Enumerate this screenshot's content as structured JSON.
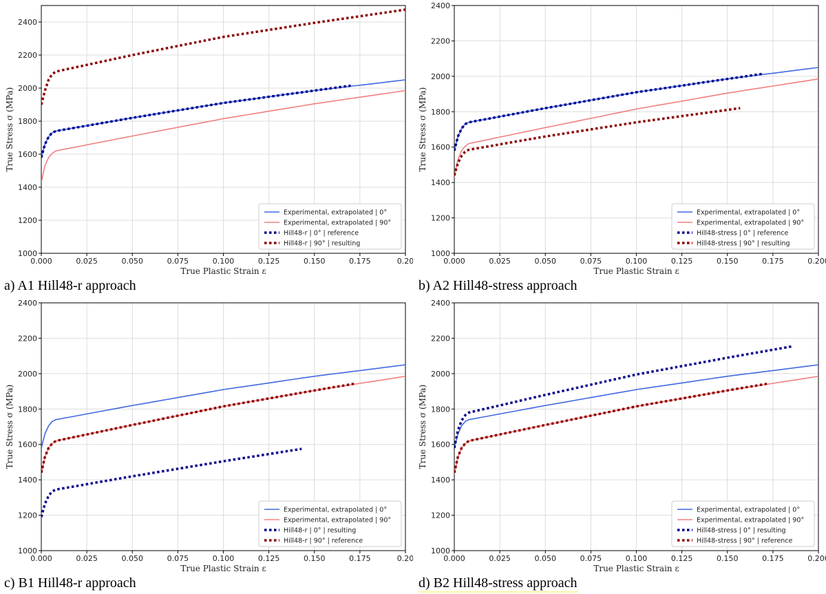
{
  "colors": {
    "exp_0": "#4169e1",
    "exp_90": "#f08080",
    "model_0": "#00008b",
    "model_90": "#8b0000"
  },
  "chart_data": [
    {
      "id": "a",
      "type": "line",
      "caption": "a) A1 Hill48-r approach",
      "xlabel": "True Plastic Strain ε",
      "ylabel": "True Stress σ (MPa)",
      "xlim": [
        0,
        0.2
      ],
      "ylim": [
        1000,
        2500
      ],
      "xticks": [
        "0.000",
        "0.025",
        "0.050",
        "0.075",
        "0.100",
        "0.125",
        "0.150",
        "0.175",
        "0.20"
      ],
      "yticks": [
        "1000",
        "1200",
        "1400",
        "1600",
        "1800",
        "2000",
        "2200",
        "2400"
      ],
      "legend_position": "bottom-right",
      "series": [
        {
          "name": "Experimental, extrapolated | 0°",
          "style": "solid",
          "color": "#4169e1",
          "x": [
            0,
            0.002,
            0.004,
            0.006,
            0.008,
            0.05,
            0.1,
            0.15,
            0.2
          ],
          "values": [
            1580,
            1660,
            1705,
            1730,
            1740,
            1820,
            1910,
            1985,
            2050
          ]
        },
        {
          "name": "Experimental, extrapolated | 90°",
          "style": "solid",
          "color": "#f08080",
          "x": [
            0,
            0.002,
            0.004,
            0.006,
            0.008,
            0.05,
            0.1,
            0.15,
            0.2
          ],
          "values": [
            1430,
            1530,
            1580,
            1605,
            1620,
            1710,
            1815,
            1905,
            1985
          ]
        },
        {
          "name": "Hill48-r | 0° | reference",
          "style": "dotted",
          "color": "#00008b",
          "x": [
            0,
            0.002,
            0.004,
            0.006,
            0.008,
            0.05,
            0.1,
            0.15,
            0.17
          ],
          "values": [
            1580,
            1660,
            1705,
            1730,
            1740,
            1820,
            1910,
            1985,
            2015
          ]
        },
        {
          "name": "Hill48-r | 90° | resulting",
          "style": "dotted",
          "color": "#8b0000",
          "x": [
            0,
            0.002,
            0.004,
            0.006,
            0.008,
            0.05,
            0.1,
            0.15,
            0.2
          ],
          "values": [
            1900,
            1985,
            2050,
            2085,
            2100,
            2200,
            2310,
            2395,
            2475
          ]
        }
      ]
    },
    {
      "id": "b",
      "type": "line",
      "caption": "b) A2 Hill48-stress approach",
      "xlabel": "True Plastic Strain ε",
      "ylabel": "True Stress σ (MPa)",
      "xlim": [
        0,
        0.2
      ],
      "ylim": [
        1000,
        2400
      ],
      "xticks": [
        "0.000",
        "0.025",
        "0.050",
        "0.075",
        "0.100",
        "0.125",
        "0.150",
        "0.175",
        "0.200"
      ],
      "yticks": [
        "1000",
        "1200",
        "1400",
        "1600",
        "1800",
        "2000",
        "2200",
        "2400"
      ],
      "legend_position": "bottom-right",
      "series": [
        {
          "name": "Experimental, extrapolated | 0°",
          "style": "solid",
          "color": "#4169e1",
          "x": [
            0,
            0.002,
            0.004,
            0.006,
            0.008,
            0.05,
            0.1,
            0.15,
            0.2
          ],
          "values": [
            1580,
            1660,
            1705,
            1730,
            1740,
            1820,
            1910,
            1985,
            2050
          ]
        },
        {
          "name": "Experimental, extrapolated | 90°",
          "style": "solid",
          "color": "#f08080",
          "x": [
            0,
            0.002,
            0.004,
            0.006,
            0.008,
            0.05,
            0.1,
            0.15,
            0.2
          ],
          "values": [
            1430,
            1530,
            1580,
            1605,
            1620,
            1710,
            1815,
            1905,
            1985
          ]
        },
        {
          "name": "Hill48-stress | 0° | reference",
          "style": "dotted",
          "color": "#00008b",
          "x": [
            0,
            0.002,
            0.004,
            0.006,
            0.008,
            0.05,
            0.1,
            0.15,
            0.17
          ],
          "values": [
            1580,
            1660,
            1705,
            1730,
            1740,
            1820,
            1910,
            1985,
            2015
          ]
        },
        {
          "name": "Hill48-stress | 90° | resulting",
          "style": "dotted",
          "color": "#8b0000",
          "x": [
            0,
            0.002,
            0.004,
            0.006,
            0.008,
            0.05,
            0.1,
            0.157
          ],
          "values": [
            1440,
            1510,
            1550,
            1575,
            1585,
            1660,
            1740,
            1820
          ]
        }
      ]
    },
    {
      "id": "c",
      "type": "line",
      "caption": "c) B1 Hill48-r approach",
      "xlabel": "True Plastic Strain ε",
      "ylabel": "True Stress σ (MPa)",
      "xlim": [
        0,
        0.2
      ],
      "ylim": [
        1000,
        2400
      ],
      "xticks": [
        "0.000",
        "0.025",
        "0.050",
        "0.075",
        "0.100",
        "0.125",
        "0.150",
        "0.175",
        "0.20"
      ],
      "yticks": [
        "1000",
        "1200",
        "1400",
        "1600",
        "1800",
        "2000",
        "2200",
        "2400"
      ],
      "legend_position": "bottom-right",
      "series": [
        {
          "name": "Experimental, extrapolated | 0°",
          "style": "solid",
          "color": "#4169e1",
          "x": [
            0,
            0.002,
            0.004,
            0.006,
            0.008,
            0.05,
            0.1,
            0.15,
            0.2
          ],
          "values": [
            1580,
            1660,
            1705,
            1730,
            1740,
            1820,
            1910,
            1985,
            2050
          ]
        },
        {
          "name": "Experimental, extrapolated | 90°",
          "style": "solid",
          "color": "#f08080",
          "x": [
            0,
            0.002,
            0.004,
            0.006,
            0.008,
            0.05,
            0.1,
            0.15,
            0.2
          ],
          "values": [
            1430,
            1530,
            1580,
            1605,
            1620,
            1710,
            1815,
            1905,
            1985
          ]
        },
        {
          "name": "Hill48-r | 0° | resulting",
          "style": "dotted",
          "color": "#00008b",
          "x": [
            0,
            0.002,
            0.004,
            0.006,
            0.008,
            0.05,
            0.1,
            0.143
          ],
          "values": [
            1190,
            1265,
            1310,
            1335,
            1345,
            1420,
            1505,
            1575
          ]
        },
        {
          "name": "Hill48-r | 90° | reference",
          "style": "dotted",
          "color": "#8b0000",
          "x": [
            0,
            0.002,
            0.004,
            0.006,
            0.008,
            0.05,
            0.1,
            0.15,
            0.173
          ],
          "values": [
            1440,
            1530,
            1580,
            1605,
            1620,
            1710,
            1815,
            1905,
            1945
          ]
        }
      ]
    },
    {
      "id": "d",
      "type": "line",
      "caption": "d) B2 Hill48-stress approach",
      "xlabel": "True Plastic Strain ε",
      "ylabel": "True Stress σ (MPa)",
      "xlim": [
        0,
        0.2
      ],
      "ylim": [
        1000,
        2400
      ],
      "xticks": [
        "0.000",
        "0.025",
        "0.050",
        "0.075",
        "0.100",
        "0.125",
        "0.150",
        "0.175",
        "0.200"
      ],
      "yticks": [
        "1000",
        "1200",
        "1400",
        "1600",
        "1800",
        "2000",
        "2200",
        "2400"
      ],
      "legend_position": "bottom-right",
      "series": [
        {
          "name": "Experimental, extrapolated | 0°",
          "style": "solid",
          "color": "#4169e1",
          "x": [
            0,
            0.002,
            0.004,
            0.006,
            0.008,
            0.05,
            0.1,
            0.15,
            0.2
          ],
          "values": [
            1580,
            1660,
            1705,
            1730,
            1740,
            1820,
            1910,
            1985,
            2050
          ]
        },
        {
          "name": "Experimental, extrapolated | 90°",
          "style": "solid",
          "color": "#f08080",
          "x": [
            0,
            0.002,
            0.004,
            0.006,
            0.008,
            0.05,
            0.1,
            0.15,
            0.2
          ],
          "values": [
            1430,
            1530,
            1580,
            1605,
            1620,
            1710,
            1815,
            1905,
            1985
          ]
        },
        {
          "name": "Hill48-stress | 0° | resulting",
          "style": "dotted",
          "color": "#00008b",
          "x": [
            0,
            0.002,
            0.004,
            0.006,
            0.008,
            0.05,
            0.1,
            0.15,
            0.186
          ],
          "values": [
            1580,
            1680,
            1735,
            1765,
            1780,
            1880,
            1995,
            2090,
            2155
          ]
        },
        {
          "name": "Hill48-stress | 90° | reference",
          "style": "dotted",
          "color": "#8b0000",
          "x": [
            0,
            0.002,
            0.004,
            0.006,
            0.008,
            0.05,
            0.1,
            0.15,
            0.173
          ],
          "values": [
            1440,
            1530,
            1580,
            1605,
            1620,
            1710,
            1815,
            1905,
            1945
          ]
        }
      ]
    }
  ]
}
